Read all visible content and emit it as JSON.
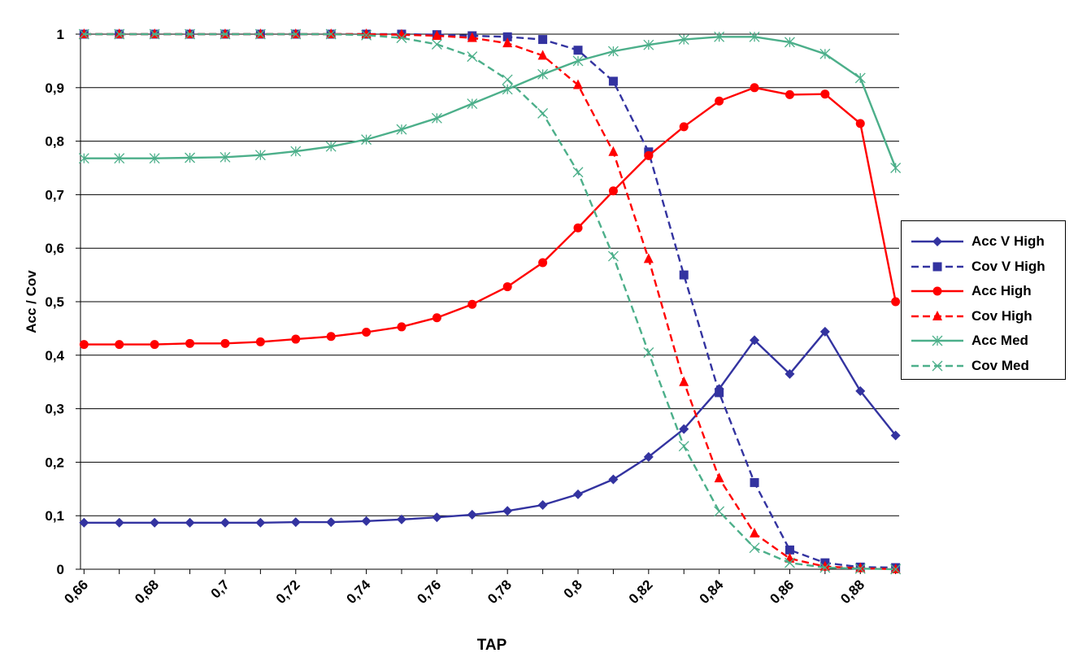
{
  "chart_data": {
    "type": "line",
    "xlabel": "TAP",
    "ylabel": "Acc / Cov",
    "xlim": [
      0.665,
      0.897
    ],
    "ylim": [
      0,
      1
    ],
    "grid": true,
    "legend_position": "right",
    "x_tick_labels": [
      "0,66",
      "0,68",
      "0,7",
      "0,72",
      "0,74",
      "0,76",
      "0,78",
      "0,8",
      "0,82",
      "0,84",
      "0,86",
      "0,88"
    ],
    "x_tick_values": [
      0.666,
      0.686,
      0.706,
      0.726,
      0.746,
      0.766,
      0.786,
      0.806,
      0.826,
      0.846,
      0.866,
      0.886
    ],
    "y_tick_labels": [
      "0",
      "0,1",
      "0,2",
      "0,3",
      "0,4",
      "0,5",
      "0,6",
      "0,7",
      "0,8",
      "0,9",
      "1"
    ],
    "x": [
      0.666,
      0.676,
      0.686,
      0.696,
      0.706,
      0.716,
      0.726,
      0.736,
      0.746,
      0.756,
      0.766,
      0.776,
      0.786,
      0.796,
      0.806,
      0.816,
      0.826,
      0.836,
      0.846,
      0.856,
      0.866,
      0.876,
      0.886,
      0.896
    ],
    "series": [
      {
        "name": "Acc V High",
        "color": "#3333a0",
        "dashed": false,
        "marker": "diamond",
        "values": [
          0.087,
          0.087,
          0.087,
          0.087,
          0.087,
          0.087,
          0.088,
          0.088,
          0.09,
          0.093,
          0.097,
          0.102,
          0.109,
          0.12,
          0.14,
          0.168,
          0.21,
          0.262,
          0.337,
          0.428,
          0.365,
          0.444,
          0.333,
          0.25
        ]
      },
      {
        "name": "Cov V High",
        "color": "#3333a0",
        "dashed": true,
        "marker": "square",
        "values": [
          1.0,
          1.0,
          1.0,
          1.0,
          1.0,
          1.0,
          1.0,
          1.0,
          1.0,
          1.0,
          0.999,
          0.997,
          0.995,
          0.99,
          0.97,
          0.912,
          0.78,
          0.55,
          0.33,
          0.162,
          0.036,
          0.012,
          0.004,
          0.003
        ]
      },
      {
        "name": "Acc High",
        "color": "#ff0000",
        "dashed": false,
        "marker": "circle",
        "values": [
          0.42,
          0.42,
          0.42,
          0.422,
          0.422,
          0.425,
          0.43,
          0.435,
          0.443,
          0.453,
          0.47,
          0.495,
          0.528,
          0.573,
          0.638,
          0.707,
          0.773,
          0.827,
          0.875,
          0.9,
          0.887,
          0.888,
          0.833,
          0.5
        ]
      },
      {
        "name": "Cov High",
        "color": "#ff0000",
        "dashed": true,
        "marker": "triangle",
        "values": [
          1.0,
          1.0,
          1.0,
          1.0,
          1.0,
          1.0,
          1.0,
          1.0,
          1.0,
          0.999,
          0.997,
          0.993,
          0.983,
          0.96,
          0.905,
          0.78,
          0.58,
          0.35,
          0.17,
          0.067,
          0.02,
          0.005,
          0.002,
          0.0
        ]
      },
      {
        "name": "Acc Med",
        "color": "#4caf8a",
        "dashed": false,
        "marker": "star",
        "values": [
          0.768,
          0.768,
          0.768,
          0.769,
          0.77,
          0.774,
          0.781,
          0.79,
          0.803,
          0.822,
          0.843,
          0.87,
          0.897,
          0.925,
          0.95,
          0.968,
          0.98,
          0.99,
          0.995,
          0.995,
          0.985,
          0.963,
          0.918,
          0.75
        ]
      },
      {
        "name": "Cov Med",
        "color": "#4caf8a",
        "dashed": true,
        "marker": "x",
        "values": [
          1.0,
          1.0,
          1.0,
          1.0,
          1.0,
          1.0,
          1.0,
          1.0,
          0.998,
          0.993,
          0.981,
          0.958,
          0.915,
          0.852,
          0.742,
          0.585,
          0.405,
          0.23,
          0.108,
          0.04,
          0.012,
          0.003,
          0.001,
          0.0
        ]
      }
    ]
  }
}
